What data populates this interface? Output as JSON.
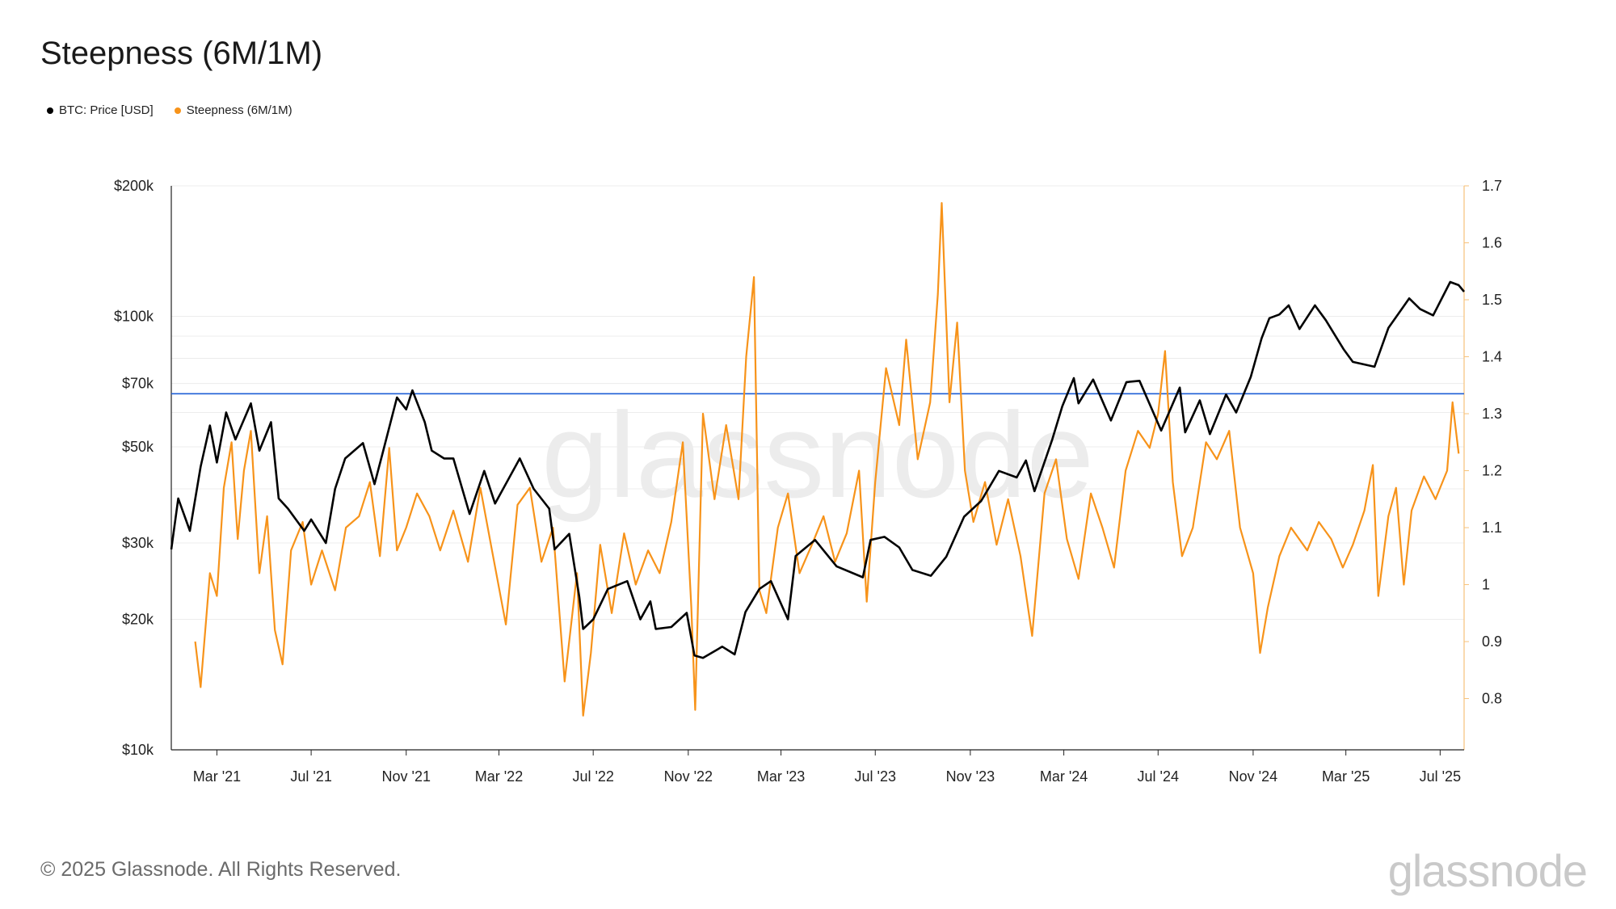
{
  "title": "Steepness (6M/1M)",
  "legend": [
    {
      "label": "BTC: Price [USD]",
      "color": "#000000"
    },
    {
      "label": "Steepness (6M/1M)",
      "color": "#f7931a"
    }
  ],
  "footer": "© 2025 Glassnode. All Rights Reserved.",
  "brand": "glassnode",
  "watermark": "glassnode",
  "chart_data": {
    "type": "line",
    "title": "Steepness (6M/1M)",
    "x_ticks": [
      "Mar '21",
      "Jul '21",
      "Nov '21",
      "Mar '22",
      "Jul '22",
      "Nov '22",
      "Mar '23",
      "Jul '23",
      "Nov '23",
      "Mar '24",
      "Jul '24",
      "Nov '24",
      "Mar '25",
      "Jul '25"
    ],
    "x_range": [
      "2021-01-01",
      "2025-08-01"
    ],
    "y_left": {
      "scale": "log",
      "range": [
        10000,
        200000
      ],
      "tick_values": [
        10000,
        20000,
        30000,
        50000,
        70000,
        100000,
        200000
      ],
      "tick_labels": [
        "$10k",
        "$20k",
        "$30k",
        "$50k",
        "$70k",
        "$100k",
        "$200k"
      ]
    },
    "y_right": {
      "scale": "linear",
      "range": [
        0.71,
        1.7
      ],
      "tick_values": [
        0.8,
        0.9,
        1.0,
        1.1,
        1.2,
        1.3,
        1.4,
        1.5,
        1.6,
        1.7
      ],
      "tick_labels": [
        "0.8",
        "0.9",
        "1",
        "1.1",
        "1.2",
        "1.3",
        "1.4",
        "1.5",
        "1.6",
        "1.7"
      ]
    },
    "reference_line": {
      "axis": "right",
      "value": 1.335,
      "color": "#1f5fd6"
    },
    "series": [
      {
        "name": "BTC: Price [USD]",
        "axis": "left",
        "color": "#000000",
        "points": [
          [
            "2021-01-01",
            29000
          ],
          [
            "2021-01-10",
            38000
          ],
          [
            "2021-01-25",
            32000
          ],
          [
            "2021-02-08",
            45000
          ],
          [
            "2021-02-20",
            56000
          ],
          [
            "2021-03-01",
            46000
          ],
          [
            "2021-03-13",
            60000
          ],
          [
            "2021-03-25",
            52000
          ],
          [
            "2021-04-14",
            63000
          ],
          [
            "2021-04-25",
            49000
          ],
          [
            "2021-05-10",
            57000
          ],
          [
            "2021-05-20",
            38000
          ],
          [
            "2021-06-01",
            36000
          ],
          [
            "2021-06-22",
            32000
          ],
          [
            "2021-07-01",
            34000
          ],
          [
            "2021-07-20",
            30000
          ],
          [
            "2021-08-01",
            40000
          ],
          [
            "2021-08-14",
            47000
          ],
          [
            "2021-09-06",
            51000
          ],
          [
            "2021-09-21",
            41000
          ],
          [
            "2021-10-01",
            48000
          ],
          [
            "2021-10-20",
            65000
          ],
          [
            "2021-11-01",
            61000
          ],
          [
            "2021-11-09",
            67500
          ],
          [
            "2021-11-25",
            57000
          ],
          [
            "2021-12-04",
            49000
          ],
          [
            "2021-12-20",
            47000
          ],
          [
            "2022-01-01",
            47000
          ],
          [
            "2022-01-22",
            35000
          ],
          [
            "2022-02-10",
            44000
          ],
          [
            "2022-02-24",
            37000
          ],
          [
            "2022-03-28",
            47000
          ],
          [
            "2022-04-15",
            40000
          ],
          [
            "2022-05-05",
            36000
          ],
          [
            "2022-05-12",
            29000
          ],
          [
            "2022-05-31",
            31500
          ],
          [
            "2022-06-13",
            22500
          ],
          [
            "2022-06-18",
            19000
          ],
          [
            "2022-07-01",
            20000
          ],
          [
            "2022-07-20",
            23500
          ],
          [
            "2022-08-14",
            24500
          ],
          [
            "2022-08-31",
            20000
          ],
          [
            "2022-09-13",
            22000
          ],
          [
            "2022-09-20",
            19000
          ],
          [
            "2022-10-10",
            19200
          ],
          [
            "2022-10-30",
            20700
          ],
          [
            "2022-11-09",
            16500
          ],
          [
            "2022-11-20",
            16300
          ],
          [
            "2022-12-15",
            17300
          ],
          [
            "2022-12-31",
            16600
          ],
          [
            "2023-01-14",
            20800
          ],
          [
            "2023-02-01",
            23500
          ],
          [
            "2023-02-16",
            24500
          ],
          [
            "2023-03-10",
            20000
          ],
          [
            "2023-03-20",
            28000
          ],
          [
            "2023-04-14",
            30500
          ],
          [
            "2023-05-12",
            26500
          ],
          [
            "2023-06-15",
            25000
          ],
          [
            "2023-06-25",
            30500
          ],
          [
            "2023-07-13",
            31000
          ],
          [
            "2023-08-01",
            29300
          ],
          [
            "2023-08-18",
            26000
          ],
          [
            "2023-09-11",
            25200
          ],
          [
            "2023-10-01",
            27900
          ],
          [
            "2023-10-24",
            34500
          ],
          [
            "2023-11-15",
            37500
          ],
          [
            "2023-12-08",
            44000
          ],
          [
            "2023-12-31",
            42500
          ],
          [
            "2024-01-12",
            46500
          ],
          [
            "2024-01-23",
            39500
          ],
          [
            "2024-02-15",
            52000
          ],
          [
            "2024-02-28",
            62000
          ],
          [
            "2024-03-14",
            72000
          ],
          [
            "2024-03-20",
            63000
          ],
          [
            "2024-04-08",
            71500
          ],
          [
            "2024-05-01",
            57500
          ],
          [
            "2024-05-21",
            70500
          ],
          [
            "2024-06-07",
            71000
          ],
          [
            "2024-07-05",
            54500
          ],
          [
            "2024-07-29",
            68500
          ],
          [
            "2024-08-05",
            54000
          ],
          [
            "2024-08-24",
            64000
          ],
          [
            "2024-09-06",
            53500
          ],
          [
            "2024-09-27",
            66000
          ],
          [
            "2024-10-10",
            60000
          ],
          [
            "2024-10-29",
            72500
          ],
          [
            "2024-11-12",
            89000
          ],
          [
            "2024-11-22",
            99000
          ],
          [
            "2024-12-05",
            101000
          ],
          [
            "2024-12-17",
            106000
          ],
          [
            "2024-12-31",
            93500
          ],
          [
            "2025-01-20",
            106000
          ],
          [
            "2025-02-03",
            98000
          ],
          [
            "2025-02-26",
            84000
          ],
          [
            "2025-03-10",
            78500
          ],
          [
            "2025-04-07",
            76500
          ],
          [
            "2025-04-25",
            94000
          ],
          [
            "2025-05-22",
            110000
          ],
          [
            "2025-06-05",
            104000
          ],
          [
            "2025-06-22",
            100500
          ],
          [
            "2025-07-14",
            120000
          ],
          [
            "2025-07-25",
            118000
          ],
          [
            "2025-08-01",
            114000
          ]
        ]
      },
      {
        "name": "Steepness (6M/1M)",
        "axis": "right",
        "color": "#f7931a",
        "points": [
          [
            "2021-02-01",
            0.9
          ],
          [
            "2021-02-08",
            0.82
          ],
          [
            "2021-02-20",
            1.02
          ],
          [
            "2021-03-01",
            0.98
          ],
          [
            "2021-03-10",
            1.17
          ],
          [
            "2021-03-20",
            1.25
          ],
          [
            "2021-03-28",
            1.08
          ],
          [
            "2021-04-05",
            1.2
          ],
          [
            "2021-04-14",
            1.27
          ],
          [
            "2021-04-25",
            1.02
          ],
          [
            "2021-05-05",
            1.12
          ],
          [
            "2021-05-15",
            0.92
          ],
          [
            "2021-05-25",
            0.86
          ],
          [
            "2021-06-05",
            1.06
          ],
          [
            "2021-06-20",
            1.11
          ],
          [
            "2021-07-01",
            1.0
          ],
          [
            "2021-07-15",
            1.06
          ],
          [
            "2021-08-01",
            0.99
          ],
          [
            "2021-08-15",
            1.1
          ],
          [
            "2021-09-01",
            1.12
          ],
          [
            "2021-09-15",
            1.18
          ],
          [
            "2021-09-28",
            1.05
          ],
          [
            "2021-10-10",
            1.24
          ],
          [
            "2021-10-20",
            1.06
          ],
          [
            "2021-11-01",
            1.1
          ],
          [
            "2021-11-15",
            1.16
          ],
          [
            "2021-12-01",
            1.12
          ],
          [
            "2021-12-15",
            1.06
          ],
          [
            "2022-01-01",
            1.13
          ],
          [
            "2022-01-20",
            1.04
          ],
          [
            "2022-02-05",
            1.17
          ],
          [
            "2022-02-20",
            1.06
          ],
          [
            "2022-03-10",
            0.93
          ],
          [
            "2022-03-25",
            1.14
          ],
          [
            "2022-04-10",
            1.17
          ],
          [
            "2022-04-25",
            1.04
          ],
          [
            "2022-05-10",
            1.1
          ],
          [
            "2022-05-25",
            0.83
          ],
          [
            "2022-06-10",
            1.02
          ],
          [
            "2022-06-18",
            0.77
          ],
          [
            "2022-06-28",
            0.88
          ],
          [
            "2022-07-10",
            1.07
          ],
          [
            "2022-07-25",
            0.95
          ],
          [
            "2022-08-10",
            1.09
          ],
          [
            "2022-08-25",
            1.0
          ],
          [
            "2022-09-10",
            1.06
          ],
          [
            "2022-09-25",
            1.02
          ],
          [
            "2022-10-10",
            1.11
          ],
          [
            "2022-10-25",
            1.25
          ],
          [
            "2022-11-05",
            0.96
          ],
          [
            "2022-11-10",
            0.78
          ],
          [
            "2022-11-20",
            1.3
          ],
          [
            "2022-12-05",
            1.15
          ],
          [
            "2022-12-20",
            1.28
          ],
          [
            "2023-01-05",
            1.15
          ],
          [
            "2023-01-15",
            1.4
          ],
          [
            "2023-01-25",
            1.54
          ],
          [
            "2023-02-01",
            0.99
          ],
          [
            "2023-02-10",
            0.95
          ],
          [
            "2023-02-25",
            1.1
          ],
          [
            "2023-03-10",
            1.16
          ],
          [
            "2023-03-25",
            1.02
          ],
          [
            "2023-04-10",
            1.07
          ],
          [
            "2023-04-25",
            1.12
          ],
          [
            "2023-05-10",
            1.04
          ],
          [
            "2023-05-25",
            1.09
          ],
          [
            "2023-06-10",
            1.2
          ],
          [
            "2023-06-20",
            0.97
          ],
          [
            "2023-07-01",
            1.18
          ],
          [
            "2023-07-15",
            1.38
          ],
          [
            "2023-08-01",
            1.28
          ],
          [
            "2023-08-10",
            1.43
          ],
          [
            "2023-08-25",
            1.22
          ],
          [
            "2023-09-10",
            1.32
          ],
          [
            "2023-09-20",
            1.51
          ],
          [
            "2023-09-25",
            1.67
          ],
          [
            "2023-10-05",
            1.32
          ],
          [
            "2023-10-15",
            1.46
          ],
          [
            "2023-10-25",
            1.2
          ],
          [
            "2023-11-05",
            1.11
          ],
          [
            "2023-11-20",
            1.18
          ],
          [
            "2023-12-05",
            1.07
          ],
          [
            "2023-12-20",
            1.15
          ],
          [
            "2024-01-05",
            1.05
          ],
          [
            "2024-01-20",
            0.91
          ],
          [
            "2024-02-05",
            1.16
          ],
          [
            "2024-02-20",
            1.22
          ],
          [
            "2024-03-05",
            1.08
          ],
          [
            "2024-03-20",
            1.01
          ],
          [
            "2024-04-05",
            1.16
          ],
          [
            "2024-04-20",
            1.1
          ],
          [
            "2024-05-05",
            1.03
          ],
          [
            "2024-05-20",
            1.2
          ],
          [
            "2024-06-05",
            1.27
          ],
          [
            "2024-06-20",
            1.24
          ],
          [
            "2024-07-01",
            1.3
          ],
          [
            "2024-07-10",
            1.41
          ],
          [
            "2024-07-20",
            1.18
          ],
          [
            "2024-08-01",
            1.05
          ],
          [
            "2024-08-15",
            1.1
          ],
          [
            "2024-09-01",
            1.25
          ],
          [
            "2024-09-15",
            1.22
          ],
          [
            "2024-10-01",
            1.27
          ],
          [
            "2024-10-15",
            1.1
          ],
          [
            "2024-11-01",
            1.02
          ],
          [
            "2024-11-10",
            0.88
          ],
          [
            "2024-11-20",
            0.96
          ],
          [
            "2024-12-05",
            1.05
          ],
          [
            "2024-12-20",
            1.1
          ],
          [
            "2025-01-10",
            1.06
          ],
          [
            "2025-01-25",
            1.11
          ],
          [
            "2025-02-10",
            1.08
          ],
          [
            "2025-02-25",
            1.03
          ],
          [
            "2025-03-10",
            1.07
          ],
          [
            "2025-03-25",
            1.13
          ],
          [
            "2025-04-05",
            1.21
          ],
          [
            "2025-04-12",
            0.98
          ],
          [
            "2025-04-25",
            1.12
          ],
          [
            "2025-05-05",
            1.17
          ],
          [
            "2025-05-15",
            1.0
          ],
          [
            "2025-05-25",
            1.13
          ],
          [
            "2025-06-10",
            1.19
          ],
          [
            "2025-06-25",
            1.15
          ],
          [
            "2025-07-10",
            1.2
          ],
          [
            "2025-07-17",
            1.32
          ],
          [
            "2025-07-25",
            1.23
          ]
        ]
      }
    ]
  }
}
